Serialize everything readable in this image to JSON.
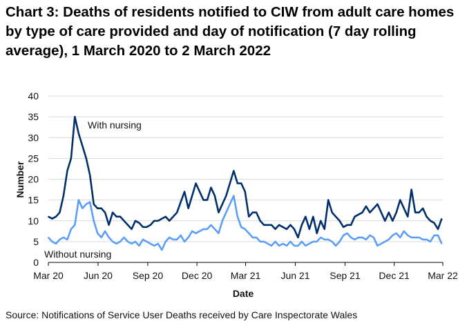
{
  "chart_data": {
    "type": "line",
    "title": "Chart 3: Deaths of residents notified to CIW from adult care homes by type of care provided and day of notification (7 day rolling average), 1 March 2020 to 2 March 2022",
    "xlabel": "Date",
    "ylabel": "Number",
    "ylim": [
      0,
      40
    ],
    "yticks": [
      0,
      5,
      10,
      15,
      20,
      25,
      30,
      35,
      40
    ],
    "xticks": [
      {
        "date": "2020-03-01",
        "label": "Mar 20"
      },
      {
        "date": "2020-06-01",
        "label": "Jun 20"
      },
      {
        "date": "2020-09-01",
        "label": "Sep 20"
      },
      {
        "date": "2020-12-01",
        "label": "Dec 20"
      },
      {
        "date": "2021-03-01",
        "label": "Mar 21"
      },
      {
        "date": "2021-06-01",
        "label": "Jun 21"
      },
      {
        "date": "2021-09-01",
        "label": "Sep 21"
      },
      {
        "date": "2021-12-01",
        "label": "Dec 21"
      },
      {
        "date": "2022-03-01",
        "label": "Mar 22"
      }
    ],
    "grid": "horizontal",
    "x": [
      "2020-03-01",
      "2020-03-08",
      "2020-03-15",
      "2020-03-22",
      "2020-03-29",
      "2020-04-05",
      "2020-04-12",
      "2020-04-19",
      "2020-04-26",
      "2020-05-03",
      "2020-05-10",
      "2020-05-17",
      "2020-05-24",
      "2020-05-31",
      "2020-06-07",
      "2020-06-14",
      "2020-06-21",
      "2020-06-28",
      "2020-07-05",
      "2020-07-12",
      "2020-07-19",
      "2020-07-26",
      "2020-08-02",
      "2020-08-09",
      "2020-08-16",
      "2020-08-23",
      "2020-08-30",
      "2020-09-06",
      "2020-09-13",
      "2020-09-20",
      "2020-09-27",
      "2020-10-04",
      "2020-10-11",
      "2020-10-18",
      "2020-10-25",
      "2020-11-01",
      "2020-11-08",
      "2020-11-15",
      "2020-11-22",
      "2020-11-29",
      "2020-12-06",
      "2020-12-13",
      "2020-12-20",
      "2020-12-27",
      "2021-01-03",
      "2021-01-10",
      "2021-01-17",
      "2021-01-24",
      "2021-01-31",
      "2021-02-07",
      "2021-02-14",
      "2021-02-21",
      "2021-02-28",
      "2021-03-07",
      "2021-03-14",
      "2021-03-21",
      "2021-03-28",
      "2021-04-04",
      "2021-04-11",
      "2021-04-18",
      "2021-04-25",
      "2021-05-02",
      "2021-05-09",
      "2021-05-16",
      "2021-05-23",
      "2021-05-30",
      "2021-06-06",
      "2021-06-13",
      "2021-06-20",
      "2021-06-27",
      "2021-07-04",
      "2021-07-11",
      "2021-07-18",
      "2021-07-25",
      "2021-08-01",
      "2021-08-08",
      "2021-08-15",
      "2021-08-22",
      "2021-08-29",
      "2021-09-05",
      "2021-09-12",
      "2021-09-19",
      "2021-09-26",
      "2021-10-03",
      "2021-10-10",
      "2021-10-17",
      "2021-10-24",
      "2021-10-31",
      "2021-11-07",
      "2021-11-14",
      "2021-11-21",
      "2021-11-28",
      "2021-12-05",
      "2021-12-12",
      "2021-12-19",
      "2021-12-26",
      "2022-01-02",
      "2022-01-09",
      "2022-01-16",
      "2022-01-23",
      "2022-01-30",
      "2022-02-06",
      "2022-02-13",
      "2022-02-20",
      "2022-02-27"
    ],
    "series": [
      {
        "name": "With nursing",
        "color": "#002f6c",
        "values": [
          11,
          10.5,
          11,
          12,
          16,
          22,
          25,
          35,
          31,
          28,
          25,
          21,
          14,
          13,
          13,
          12,
          9,
          12,
          11,
          11,
          10,
          9,
          8,
          10,
          9.5,
          8.5,
          8.5,
          9,
          10,
          10,
          10.5,
          11,
          10,
          11,
          12,
          14.5,
          17,
          13,
          16,
          19,
          17,
          15,
          15,
          18,
          16,
          12,
          14,
          16,
          19,
          22,
          19,
          19,
          17,
          11,
          12,
          12,
          10,
          9,
          9,
          9,
          8,
          9,
          8.5,
          8,
          9,
          8,
          6,
          9,
          11,
          8,
          11,
          7,
          10,
          8,
          15,
          12,
          11,
          10,
          8.5,
          9,
          9,
          11,
          11.5,
          12,
          13.5,
          12,
          13,
          14,
          12,
          10,
          12,
          10,
          12,
          15,
          13,
          11,
          17.5,
          12,
          12,
          13,
          11,
          10,
          9.5,
          8,
          10.5
        ]
      },
      {
        "name": "Without nursing",
        "color": "#5b9ef5",
        "values": [
          6,
          5,
          4.5,
          5.5,
          6,
          5.5,
          8,
          9,
          15,
          13,
          14,
          14.5,
          10,
          7,
          6,
          7.5,
          6,
          5,
          4.5,
          5,
          6,
          5,
          4.5,
          5,
          4,
          5.5,
          5,
          4.5,
          4,
          4.5,
          3,
          5,
          6,
          5.5,
          5.5,
          6.5,
          5,
          6,
          7.5,
          7,
          7.5,
          8,
          8,
          9,
          8,
          7,
          10,
          12,
          14,
          16,
          11,
          8.5,
          8,
          7,
          6,
          6,
          5,
          5,
          4.5,
          4,
          5,
          4,
          4.5,
          4,
          5,
          4,
          4,
          5,
          4,
          4.5,
          5,
          5,
          6,
          5.5,
          5.5,
          5,
          4,
          5,
          6.5,
          7,
          6,
          5.5,
          6,
          6,
          5.5,
          6.5,
          6,
          4,
          4.5,
          5,
          5.5,
          6.5,
          7,
          6,
          7.5,
          6.5,
          6,
          6,
          6,
          5.5,
          5.5,
          5,
          6.5,
          6.5,
          4.5
        ]
      }
    ],
    "annotations": [
      "With nursing",
      "Without nursing"
    ],
    "legend": "none (direct labels)"
  },
  "source": "Source: Notifications of Service User Deaths received by Care Inspectorate Wales"
}
